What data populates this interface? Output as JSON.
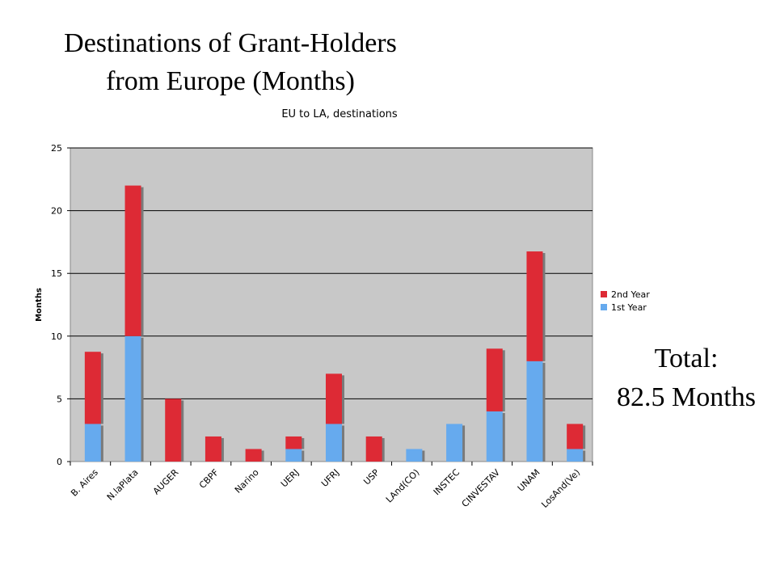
{
  "slide": {
    "title_line1": "Destinations of Grant-Holders",
    "title_line2": "from Europe (Months)",
    "total_line1": "Total:",
    "total_line2": "82.5 Months"
  },
  "chart_data": {
    "type": "bar",
    "stacked": true,
    "title": "EU to LA, destinations",
    "xlabel": "",
    "ylabel": "Months",
    "ylim": [
      0,
      25
    ],
    "yticks": [
      0,
      5,
      10,
      15,
      20,
      25
    ],
    "grid": true,
    "legend_position": "right",
    "categories": [
      "B. Aires",
      "N.laPlata",
      "AUGER",
      "CBPF",
      "Narino",
      "UERJ",
      "UFRJ",
      "USP",
      "LAnd(CO)",
      "INSTEC",
      "CINVESTAV",
      "UNAM",
      "LosAnd(Ve)"
    ],
    "series": [
      {
        "name": "1st Year",
        "color": "#66aaee",
        "values": [
          3,
          10,
          0,
          0,
          0,
          1,
          3,
          0,
          1,
          3,
          4,
          8,
          1
        ]
      },
      {
        "name": "2nd Year",
        "color": "#dd2a35",
        "values": [
          5.75,
          12,
          5,
          2,
          1,
          1,
          4,
          2,
          0,
          0,
          5,
          8.75,
          2
        ]
      }
    ]
  }
}
